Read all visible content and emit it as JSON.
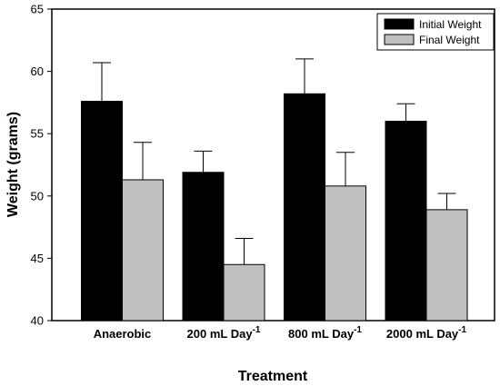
{
  "chart_data": {
    "type": "bar",
    "xlabel": "Treatment",
    "ylabel": "Weight (grams)",
    "ylim": [
      40,
      65
    ],
    "yticks": [
      40,
      45,
      50,
      55,
      60,
      65
    ],
    "categories": [
      {
        "label": "Anaerobic",
        "superscript": ""
      },
      {
        "label": "200 mL Day",
        "superscript": "-1"
      },
      {
        "label": "800 mL Day",
        "superscript": "-1"
      },
      {
        "label": "2000 mL Day",
        "superscript": "-1"
      }
    ],
    "series": [
      {
        "name": "Initial Weight",
        "color": "#000000",
        "values": [
          57.6,
          51.9,
          58.2,
          56.0
        ],
        "errors": [
          3.1,
          1.7,
          2.8,
          1.4
        ]
      },
      {
        "name": "Final Weight",
        "color": "#c0c0c0",
        "values": [
          51.3,
          44.5,
          50.8,
          48.9
        ],
        "errors": [
          3.0,
          2.1,
          2.7,
          1.3
        ]
      }
    ],
    "legend_position": "top-right",
    "grid": false
  }
}
